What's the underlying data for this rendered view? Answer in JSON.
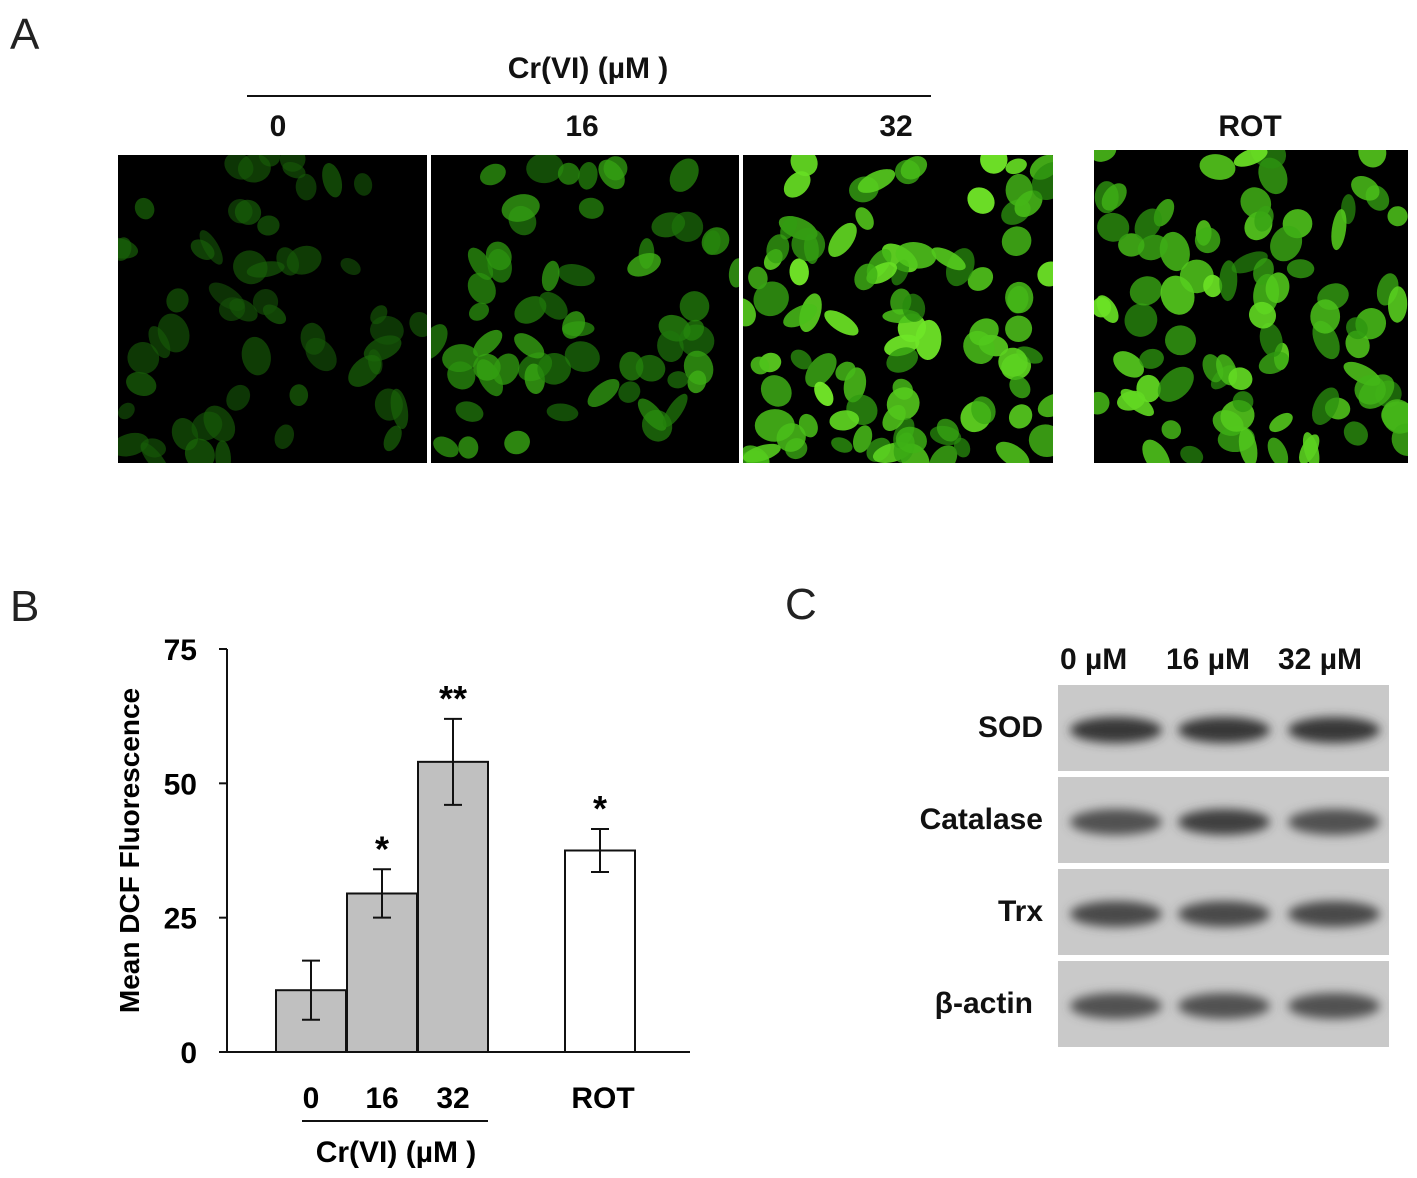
{
  "panels": {
    "a_label": "A",
    "b_label": "B",
    "c_label": "C"
  },
  "panel_a": {
    "group_title": "Cr(VI) (µM )",
    "images": [
      {
        "label": "0",
        "intensity": 0.25,
        "density": 55
      },
      {
        "label": "16",
        "intensity": 0.6,
        "density": 60
      },
      {
        "label": "32",
        "intensity": 0.9,
        "density": 95
      },
      {
        "label": "ROT",
        "intensity": 0.85,
        "density": 85
      }
    ]
  },
  "chart_data": {
    "type": "bar",
    "categories": [
      "0",
      "16",
      "32",
      "ROT"
    ],
    "values": [
      11.5,
      29.5,
      54,
      37.5
    ],
    "errors": [
      5.5,
      4.5,
      8,
      4
    ],
    "significance": [
      "",
      "*",
      "**",
      "*"
    ],
    "bar_colors": [
      "#c0c0c0",
      "#c0c0c0",
      "#c0c0c0",
      "#ffffff"
    ],
    "ylabel": "Mean DCF Fluorescence",
    "xgroup_label": "Cr(VI) (µM )",
    "ylim": [
      0,
      75
    ],
    "yticks": [
      0,
      25,
      50,
      75
    ]
  },
  "panel_c": {
    "lanes": [
      "0 µM",
      "16 µM",
      "32 µM"
    ],
    "rows": [
      {
        "label": "SOD",
        "band_strength": [
          0.85,
          0.85,
          0.85
        ]
      },
      {
        "label": "Catalase",
        "band_strength": [
          0.7,
          0.8,
          0.7
        ]
      },
      {
        "label": "Trx",
        "band_strength": [
          0.75,
          0.75,
          0.75
        ]
      },
      {
        "label": "β-actin",
        "band_strength": [
          0.7,
          0.7,
          0.7
        ]
      }
    ]
  }
}
